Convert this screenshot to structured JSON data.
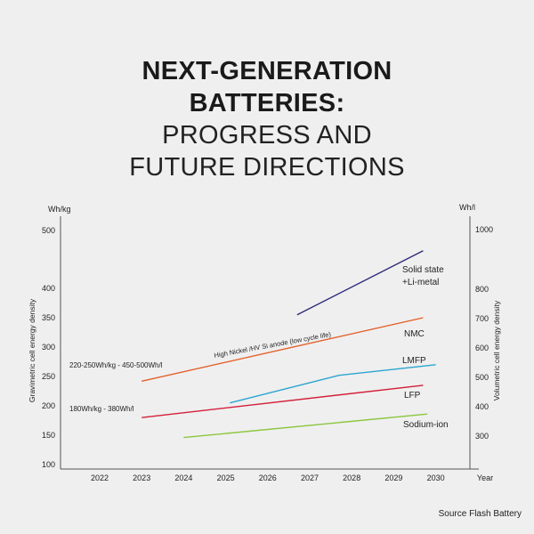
{
  "title": {
    "line1": "NEXT-GENERATION",
    "line2": "BATTERIES:",
    "line3": "PROGRESS AND",
    "line4": "FUTURE DIRECTIONS"
  },
  "source": "Source Flash Battery",
  "colors": {
    "solid_state": "#2e2a78",
    "nmc": "#e4602b",
    "lmfp": "#2aa6cf",
    "lfp": "#d31f3a",
    "sodium_ion": "#8cc63f",
    "axis": "#555555",
    "text": "#222222"
  },
  "chart_data": {
    "type": "line",
    "left_axis": {
      "unit": "Wh/kg",
      "label": "Gravimetric cell energy density",
      "ticks": [
        100,
        150,
        200,
        250,
        300,
        350,
        400,
        500
      ],
      "ylim": [
        100,
        500
      ]
    },
    "right_axis": {
      "unit": "Wh/l",
      "label": "Volumetric cell energy density",
      "ticks": [
        300,
        400,
        500,
        600,
        700,
        800,
        1000
      ],
      "ylim": [
        100,
        1000
      ]
    },
    "x_axis": {
      "label": "Year",
      "ticks": [
        "2022",
        "2023",
        "2024",
        "2025",
        "2026",
        "2027",
        "2028",
        "2029",
        "2030"
      ]
    },
    "grid": false,
    "series": [
      {
        "name": "Solid state +Li-metal",
        "label_line1": "Solid state",
        "label_line2": "+Li-metal",
        "color_key": "solid_state",
        "points": [
          [
            2026.7,
            355
          ],
          [
            2029.7,
            465
          ]
        ]
      },
      {
        "name": "NMC",
        "label_line1": "NMC",
        "color_key": "nmc",
        "points": [
          [
            2023.0,
            242
          ],
          [
            2029.7,
            350
          ]
        ]
      },
      {
        "name": "LMFP",
        "label_line1": "LMFP",
        "color_key": "lmfp",
        "points": [
          [
            2025.1,
            205
          ],
          [
            2027.7,
            252
          ],
          [
            2030.0,
            270
          ]
        ]
      },
      {
        "name": "LFP",
        "label_line1": "LFP",
        "color_key": "lfp",
        "points": [
          [
            2023.0,
            180
          ],
          [
            2029.7,
            235
          ]
        ]
      },
      {
        "name": "Sodium-ion",
        "label_line1": "Sodium-ion",
        "color_key": "sodium_ion",
        "points": [
          [
            2024.0,
            146
          ],
          [
            2029.8,
            186
          ]
        ]
      }
    ],
    "annotations": [
      {
        "key": "nmc_range",
        "text": "220-250Wh/kg - 450-500Wh/l"
      },
      {
        "key": "lfp_range",
        "text": "180Wh/kg - 380Wh/l"
      },
      {
        "key": "nmc_note",
        "text": "High Nickel /HV Si anode (low cycle life)"
      }
    ]
  }
}
